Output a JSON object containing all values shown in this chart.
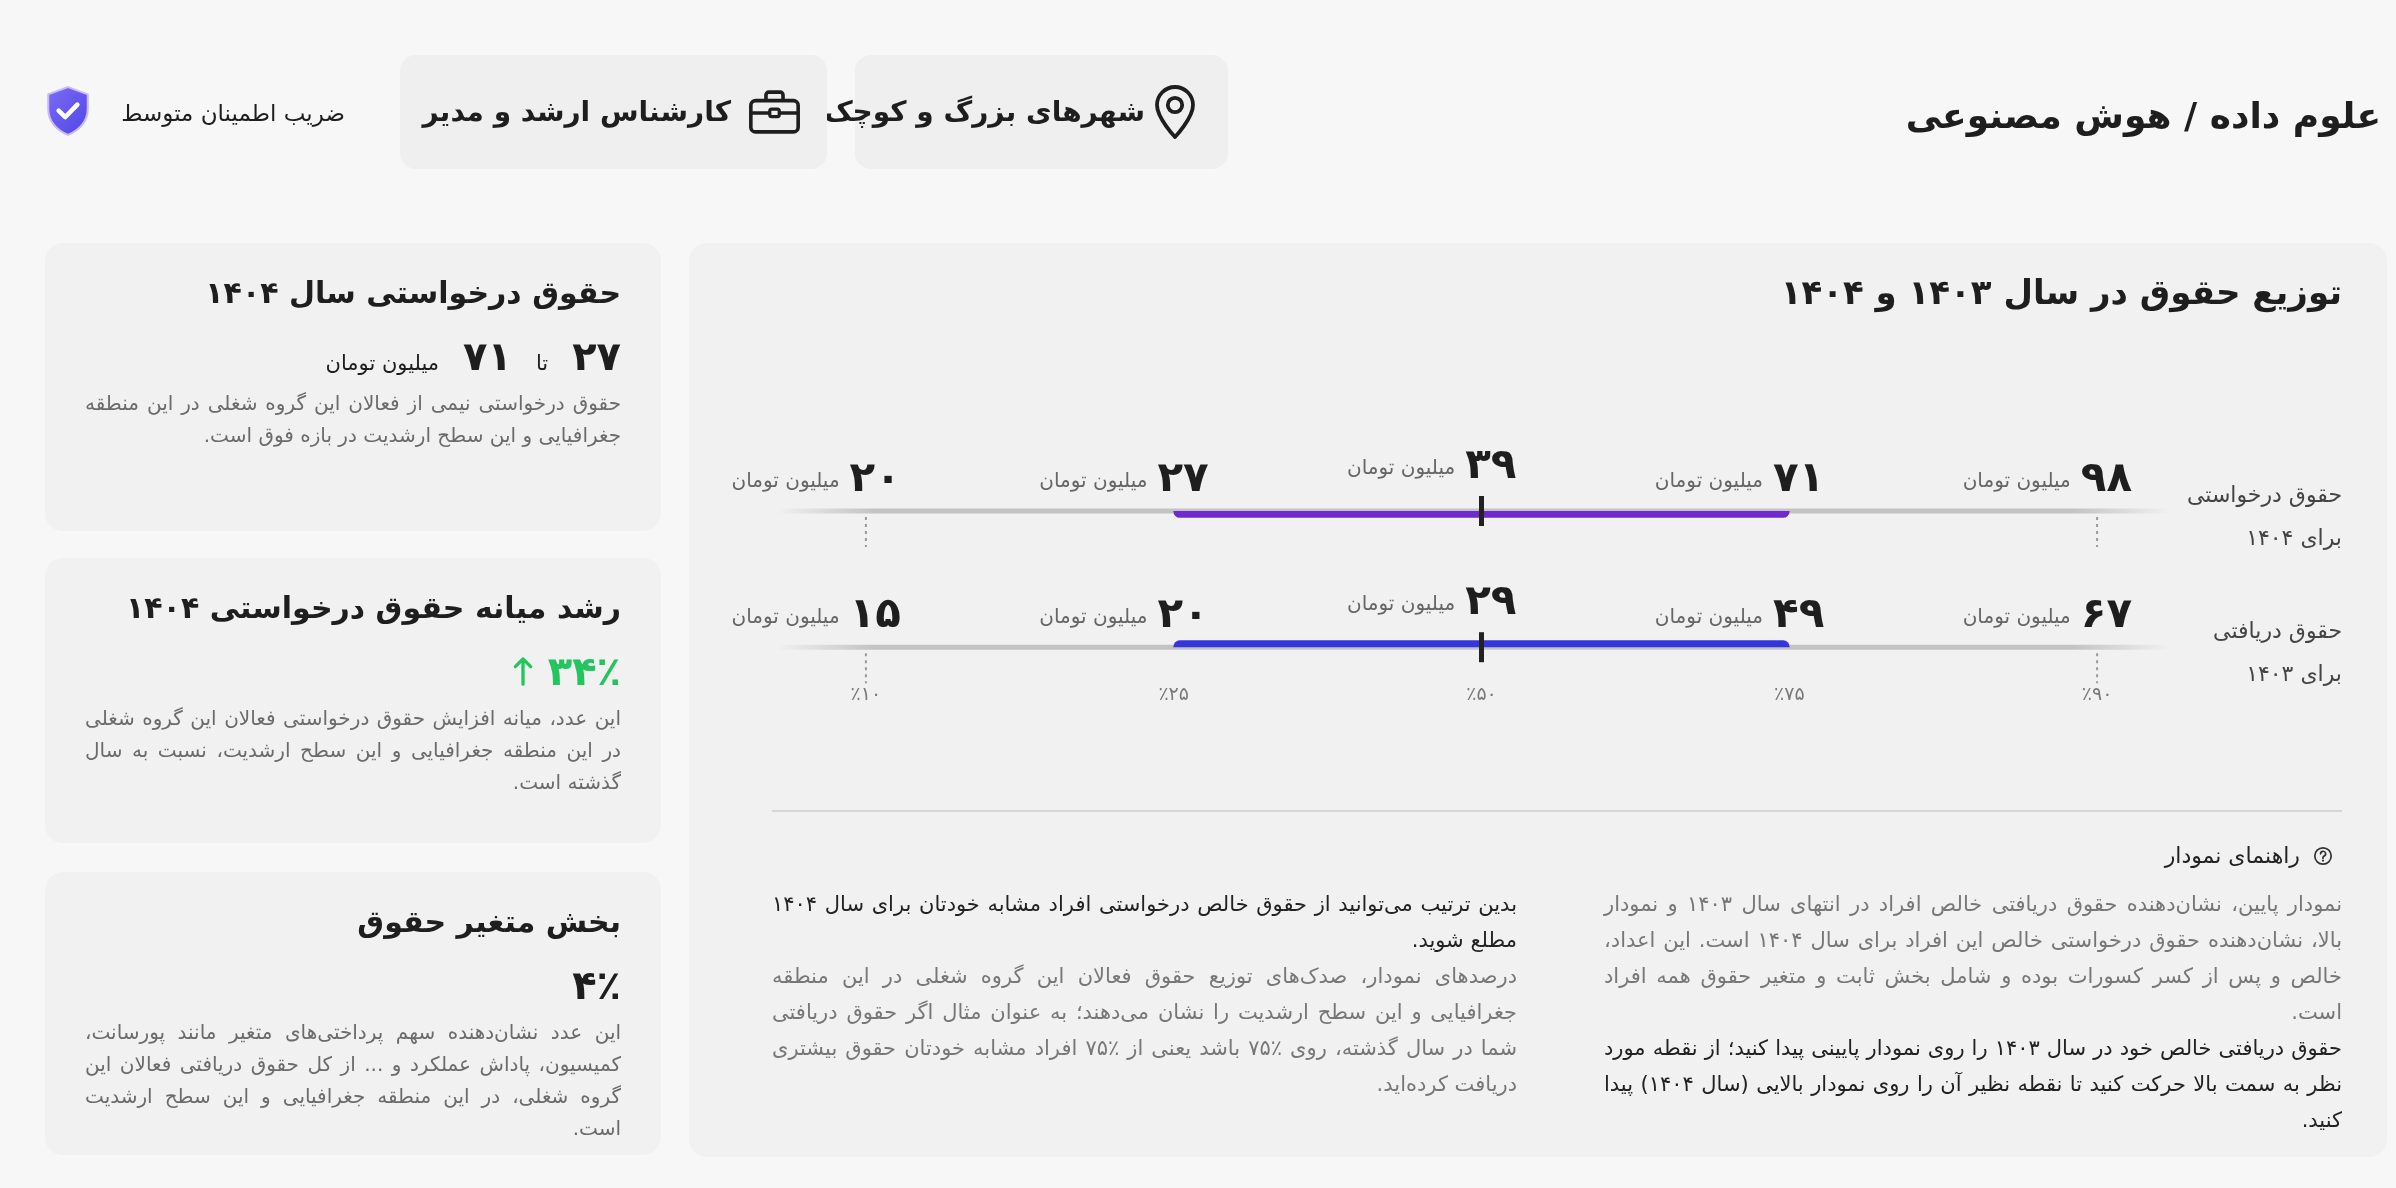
{
  "chart_data": [
    {
      "type": "other",
      "title": "علوم داده / هوش مصنوعی",
      "annotations": [
        "شهرهای بزرگ و کوچک",
        "کارشناس ارشد و مدیر",
        "ضریب اطمینان متوسط"
      ]
    },
    {
      "type": "other",
      "title": "توزیع حقوق در سال ۱۴۰۳ و ۱۴۰۴",
      "categories": [
        "٪۱۰",
        "٪۲۵",
        "٪۵۰",
        "٪۷۵",
        "٪۹۰"
      ],
      "colors": [
        "#7029cc",
        "#3634dc"
      ],
      "series": [
        {
          "name": "حقوق درخواستی برای ۱۴۰۴",
          "values": [
            20,
            27,
            39,
            71,
            98
          ],
          "value_labels": [
            "۲۰",
            "۲۷",
            "۳۹",
            "۷۱",
            "۹۸"
          ]
        },
        {
          "name": "حقوق دریافتی برای ۱۴۰۳",
          "values": [
            15,
            20,
            29,
            49,
            67
          ],
          "value_labels": [
            "۱۵",
            "۲۰",
            "۲۹",
            "۴۹",
            "۶۷"
          ]
        }
      ],
      "annotations": [
        "میلیون تومان"
      ]
    },
    {
      "type": "other",
      "title": "راهنمای نمودار",
      "annotations": [
        "نمودار پایین، نشان‌دهنده حقوق دریافتی خالص افراد در انتهای سال ۱۴۰۳ و نمودار بالا، نشان‌دهنده حقوق درخواستی خالص این افراد برای سال ۱۴۰۴ است. این اعداد، خالص و پس از کسر کسورات بوده و شامل بخش ثابت و متغیر حقوق همه افراد است.",
        "حقوق دریافتی خالص خود در سال ۱۴۰۳ را روی نمودار پایینی پیدا کنید؛ از نقطه مورد نظر به سمت بالا حرکت کنید تا نقطه نظیر آن را روی نمودار بالایی (سال ۱۴۰۴) پیدا کنید.",
        "بدین ترتیب می‌توانید از حقوق خالص درخواستی افراد مشابه خودتان برای سال ۱۴۰۴ مطلع شوید.",
        "درصدهای نمودار، صدک‌های توزیع حقوق فعالان این گروه شغلی در این منطقه جغرافیایی و این سطح ارشدیت را نشان می‌دهند؛ به عنوان مثال اگر حقوق دریافتی شما در سال گذشته، روی ٪۷۵ باشد یعنی از ٪۷۵ افراد مشابه خودتان حقوق بیشتری دریافت کرده‌اید."
      ]
    },
    {
      "type": "other",
      "title": "حقوق درخواستی سال ۱۴۰۴",
      "annotations": [
        "۲۷",
        "تا",
        "۷۱",
        "میلیون تومان",
        "حقوق درخواستی نیمی از فعالان این گروه شغلی در این منطقه جغرافیایی و این سطح ارشدیت در بازه فوق است."
      ]
    },
    {
      "type": "other",
      "title": "رشد میانه حقوق درخواستی ۱۴۰۴",
      "color": "#22c55e",
      "annotations": [
        "۳۴٪",
        "این عدد، میانه افزایش حقوق درخواستی فعالان این گروه شغلی در این منطقه جغرافیایی و این سطح ارشدیت، نسبت به سال گذشته است."
      ]
    },
    {
      "type": "other",
      "title": "بخش متغیر حقوق",
      "annotations": [
        "۴٪",
        "این عدد نشان‌دهنده سهم پرداختی‌های متغیر مانند پورسانت، کمیسیون، پاداش عملکرد و ... از کل حقوق دریافتی فعالان این گروه شغلی، در این منطقه جغرافیایی و این سطح ارشدیت است."
      ]
    }
  ]
}
